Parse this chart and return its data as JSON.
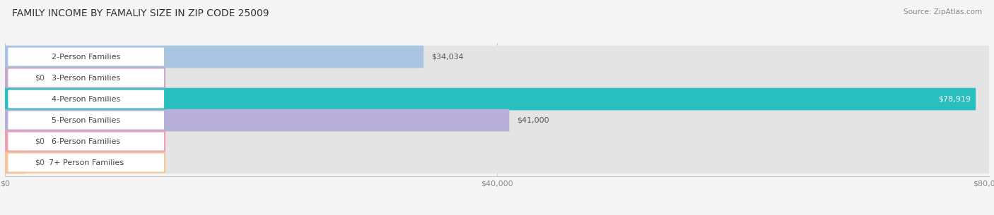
{
  "title": "FAMILY INCOME BY FAMALIY SIZE IN ZIP CODE 25009",
  "source": "Source: ZipAtlas.com",
  "categories": [
    "2-Person Families",
    "3-Person Families",
    "4-Person Families",
    "5-Person Families",
    "6-Person Families",
    "7+ Person Families"
  ],
  "values": [
    34034,
    0,
    78919,
    41000,
    0,
    0
  ],
  "bar_colors": [
    "#a8c4e0",
    "#c9a8c8",
    "#2abfbf",
    "#b8b0d8",
    "#f0a0b0",
    "#f5c89a"
  ],
  "label_colors": [
    "#555555",
    "#555555",
    "#ffffff",
    "#555555",
    "#555555",
    "#555555"
  ],
  "value_labels": [
    "$34,034",
    "$0",
    "$78,919",
    "$41,000",
    "$0",
    "$0"
  ],
  "background_color": "#f5f5f5",
  "bar_background": "#e8e8e8",
  "xlim": [
    0,
    80000
  ],
  "xtick_labels": [
    "$0",
    "$40,000",
    "$80,000"
  ],
  "xtick_values": [
    0,
    40000,
    80000
  ],
  "title_fontsize": 10,
  "label_fontsize": 8,
  "value_fontsize": 8,
  "category_label_border_colors": [
    "#a8c4e0",
    "#c9a8c8",
    "#2abfbf",
    "#b8b0d8",
    "#f0a0b0",
    "#f5c89a"
  ]
}
